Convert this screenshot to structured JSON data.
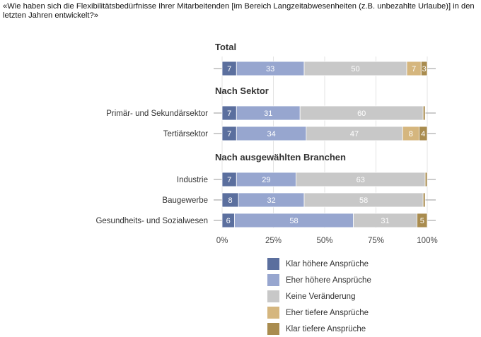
{
  "question": "«Wie haben sich die Flexibilitätsbedürfnisse Ihrer Mitarbeitenden [im Bereich Langzeitabwesenheiten (z.B. unbezahlte Urlaube)] in den letzten Jahren entwickelt?»",
  "colors": {
    "klar_hoehere": "#5b6f9e",
    "eher_hoehere": "#97a6cf",
    "keine": "#c8c8c8",
    "eher_tiefere": "#d5b67e",
    "klar_tiefere": "#a98c4f"
  },
  "chart_data": {
    "type": "bar",
    "orientation": "horizontal",
    "stacked": true,
    "percent_axis": true,
    "xlim": [
      0,
      100
    ],
    "x_ticks": [
      "0%",
      "25%",
      "50%",
      "75%",
      "100%"
    ],
    "groups": [
      {
        "title": "Total",
        "rows": [
          {
            "label": "",
            "values": [
              7,
              33,
              50,
              7,
              3
            ]
          }
        ]
      },
      {
        "title": "Nach Sektor",
        "rows": [
          {
            "label": "Primär- und Sekundärsektor",
            "values": [
              7,
              31,
              60,
              0,
              1
            ]
          },
          {
            "label": "Tertiärsektor",
            "values": [
              7,
              34,
              47,
              8,
              4
            ]
          }
        ]
      },
      {
        "title": "Nach ausgewählten Branchen",
        "rows": [
          {
            "label": "Industrie",
            "values": [
              7,
              29,
              63,
              0,
              1
            ]
          },
          {
            "label": "Baugewerbe",
            "values": [
              8,
              32,
              58,
              0,
              1
            ]
          },
          {
            "label": "Gesundheits- und Sozialwesen",
            "values": [
              6,
              58,
              31,
              0,
              5
            ]
          }
        ]
      }
    ],
    "series": [
      {
        "name": "Klar höhere Ansprüche",
        "color": "#5b6f9e"
      },
      {
        "name": "Eher höhere Ansprüche",
        "color": "#97a6cf"
      },
      {
        "name": "Keine Veränderung",
        "color": "#c8c8c8"
      },
      {
        "name": "Eher tiefere Ansprüche",
        "color": "#d5b67e"
      },
      {
        "name": "Klar tiefere Ansprüche",
        "color": "#a98c4f"
      }
    ],
    "legend_position": "bottom",
    "grid": true
  }
}
